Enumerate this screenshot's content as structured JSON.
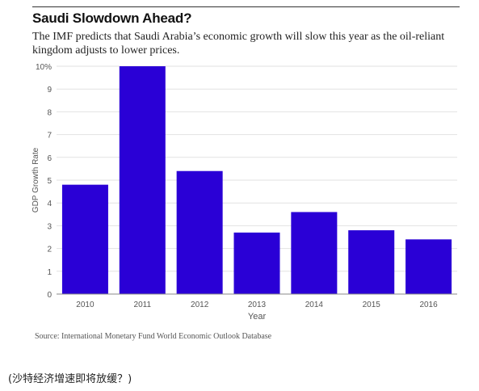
{
  "chart_data": {
    "type": "bar",
    "title": "Saudi Slowdown Ahead?",
    "subtitle": "The IMF predicts that Saudi Arabia’s economic growth will slow this year as the oil-reliant kingdom adjusts to lower prices.",
    "categories": [
      "2010",
      "2011",
      "2012",
      "2013",
      "2014",
      "2015",
      "2016"
    ],
    "values": [
      4.8,
      10.0,
      5.4,
      2.7,
      3.6,
      2.8,
      2.4
    ],
    "xlabel": "Year",
    "ylabel": "GDP Growth Rate",
    "ylim": [
      0,
      10
    ],
    "yticks": [
      "0",
      "1",
      "2",
      "3",
      "4",
      "5",
      "6",
      "7",
      "8",
      "9",
      "10%"
    ],
    "grid": true,
    "bar_color": "#2a00d6"
  },
  "source": "Source: International Monetary Fund World Economic Outlook Database",
  "caption": "(沙特经济增速即将放缓？)"
}
